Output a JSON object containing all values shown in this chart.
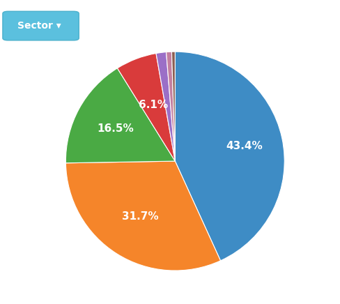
{
  "slices": [
    43.4,
    31.7,
    16.5,
    6.1,
    1.5,
    0.8,
    0.5
  ],
  "colors": [
    "#3e8cc5",
    "#f5852a",
    "#4aaa44",
    "#d93b3b",
    "#9b6fc7",
    "#c47fa0",
    "#8b5e52"
  ],
  "labels": [
    "43.4%",
    "31.7%",
    "16.5%",
    "6.1%",
    "",
    "",
    ""
  ],
  "label_fontsize": 11,
  "label_color": "white",
  "background_color": "#ffffff",
  "button_text": "Sector ▾",
  "button_color": "#5bc0de",
  "button_text_color": "white",
  "startangle": 90,
  "figsize": [
    4.88,
    4.36
  ],
  "dpi": 100
}
